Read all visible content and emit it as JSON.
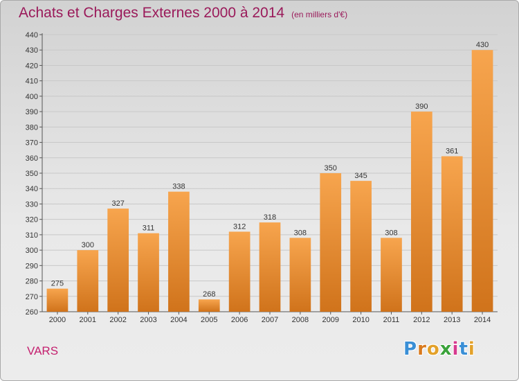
{
  "header": {
    "title": "Achats et Charges Externes 2000 à 2014",
    "unit": "(en milliers d'€)"
  },
  "footer": {
    "commune": "VARS",
    "logo_letters": [
      "P",
      "r",
      "o",
      "x",
      "i",
      "t",
      "i"
    ]
  },
  "colors": {
    "bar_top": "#f7a54e",
    "bar_bottom": "#d0731b",
    "title": "#9a1a5a",
    "commune": "#c41e6e",
    "logo": [
      "#3a8fd6",
      "#d97a1e",
      "#e3a12a",
      "#3aa23a",
      "#d63a8f",
      "#3a8fd6",
      "#e3a12a"
    ]
  },
  "chart_data": {
    "type": "bar",
    "title": "Achats et Charges Externes 2000 à 2014",
    "subtitle": "(en milliers d'€)",
    "categories": [
      "2000",
      "2001",
      "2002",
      "2003",
      "2004",
      "2005",
      "2006",
      "2007",
      "2008",
      "2009",
      "2010",
      "2011",
      "2012",
      "2013",
      "2014"
    ],
    "values": [
      275,
      300,
      327,
      311,
      338,
      268,
      312,
      318,
      308,
      350,
      345,
      308,
      390,
      361,
      430
    ],
    "ylim": [
      260,
      440
    ],
    "yticks": [
      260,
      270,
      280,
      290,
      300,
      310,
      320,
      330,
      340,
      350,
      360,
      370,
      380,
      390,
      400,
      410,
      420,
      430,
      440
    ],
    "grid": true,
    "xlabel": "",
    "ylabel": ""
  }
}
